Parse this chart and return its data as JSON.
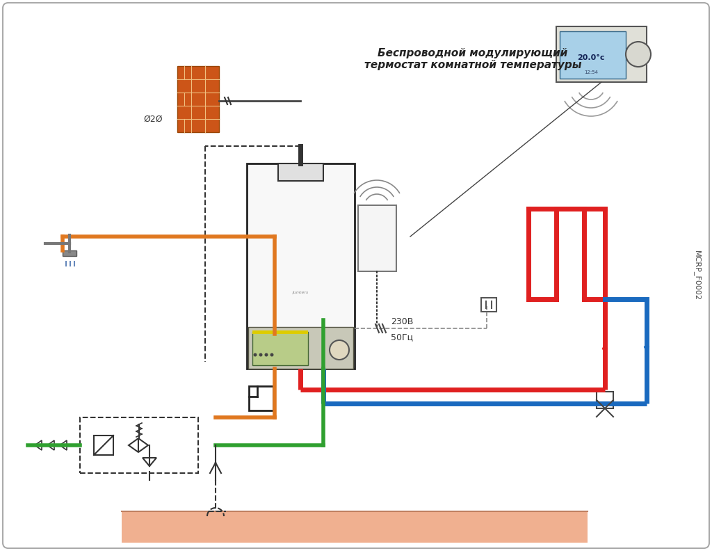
{
  "title": "MCRP_F0002",
  "thermostat_label": "Беспроводной модулирующий\nтермостат комнатной температуры",
  "thermostat_temp": "20.0°c",
  "voltage_label": "230В\n50Гц",
  "bg_color": "#f5f5f5",
  "border_color": "#888888",
  "boiler_color": "#f2f2f2",
  "red_pipe": "#e02020",
  "blue_pipe": "#1a6abf",
  "orange_pipe": "#e07820",
  "green_pipe": "#30a030",
  "floor_color": "#f0b090",
  "text_color": "#222222"
}
